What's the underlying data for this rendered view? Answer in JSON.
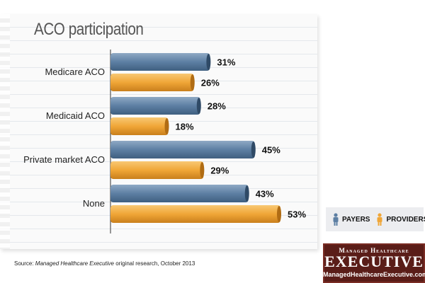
{
  "chart_data": {
    "type": "bar",
    "orientation": "horizontal",
    "title": "ACO participation",
    "categories": [
      "Medicare ACO",
      "Medicaid ACO",
      "Private market ACO",
      "None"
    ],
    "series": [
      {
        "name": "PAYERS",
        "values": [
          31,
          28,
          45,
          43
        ],
        "color": "#5d7fa3"
      },
      {
        "name": "PROVIDERS",
        "values": [
          26,
          18,
          29,
          53
        ],
        "color": "#f0a637"
      }
    ],
    "value_suffix": "%",
    "xlim": [
      0,
      60
    ],
    "grid": false,
    "legend_position": "bottom-right"
  },
  "source": {
    "prefix": "Source: ",
    "publication": "Managed Healthcare Executive",
    "suffix": " original research, October 2013"
  },
  "logo": {
    "line1": "Managed Healthcare",
    "line2": "EXECUTIVE",
    "line3": "ManagedHealthcareExecutive.com"
  }
}
